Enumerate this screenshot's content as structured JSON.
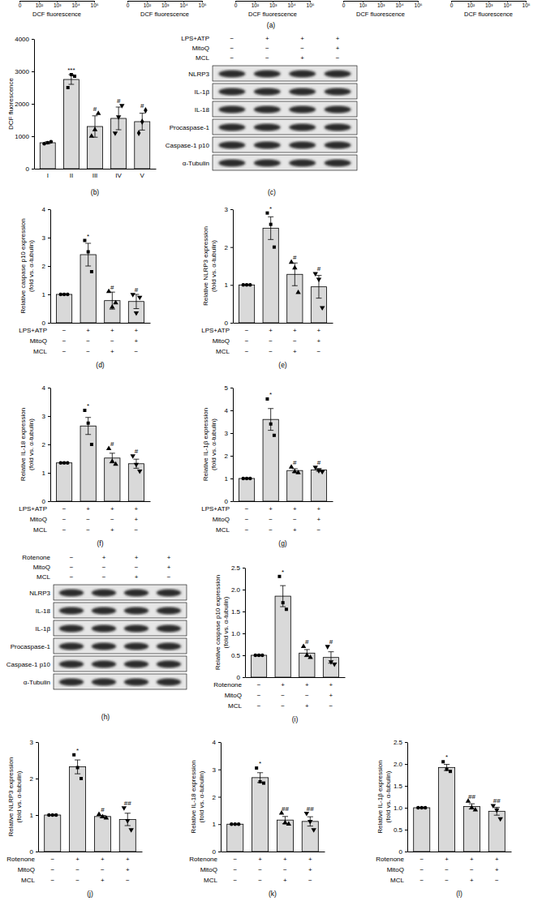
{
  "flow": {
    "panel_label": "(a)",
    "panels": [
      {
        "xlabel": "DCF fluorescence",
        "xlim": [
          0,
          100000
        ],
        "xticks": [
          {
            "value": 0,
            "label": "0"
          },
          {
            "value": 100,
            "label": "10²"
          },
          {
            "value": 1000,
            "label": "10³"
          },
          {
            "value": 10000,
            "label": "10⁴"
          },
          {
            "value": 100000,
            "label": "10⁵"
          }
        ]
      },
      {
        "xlabel": "DCF fluorescence",
        "xlim": [
          0,
          100000
        ],
        "xticks": [
          {
            "value": 0,
            "label": "0"
          },
          {
            "value": 100,
            "label": "10²"
          },
          {
            "value": 1000,
            "label": "10³"
          },
          {
            "value": 10000,
            "label": "10⁴"
          },
          {
            "value": 100000,
            "label": "10⁵"
          }
        ]
      },
      {
        "xlabel": "DCF fluorescence",
        "xlim": [
          0,
          100000
        ],
        "xticks": [
          {
            "value": 0,
            "label": "0"
          },
          {
            "value": 100,
            "label": "10²"
          },
          {
            "value": 1000,
            "label": "10³"
          },
          {
            "value": 10000,
            "label": "10⁴"
          },
          {
            "value": 100000,
            "label": "10⁵"
          }
        ]
      },
      {
        "xlabel": "DCF fluorescence",
        "xlim": [
          0,
          100000
        ],
        "xticks": [
          {
            "value": 0,
            "label": "0"
          },
          {
            "value": 100,
            "label": "10²"
          },
          {
            "value": 1000,
            "label": "10³"
          },
          {
            "value": 10000,
            "label": "10⁴"
          },
          {
            "value": 100000,
            "label": "10⁵"
          }
        ]
      },
      {
        "xlabel": "DCF fluorescence",
        "xlim": [
          0,
          100000
        ],
        "xticks": [
          {
            "value": 0,
            "label": "0"
          },
          {
            "value": 100,
            "label": "10²"
          },
          {
            "value": 1000,
            "label": "10³"
          },
          {
            "value": 10000,
            "label": "10⁴"
          },
          {
            "value": 100000,
            "label": "10⁵"
          }
        ]
      }
    ]
  },
  "blots": [
    {
      "panel_label": "(c)",
      "conditions": [
        {
          "label": "LPS+ATP",
          "marks": [
            "−",
            "+",
            "+",
            "+"
          ]
        },
        {
          "label": "MitoQ",
          "marks": [
            "−",
            "−",
            "−",
            "+"
          ]
        },
        {
          "label": "MCL",
          "marks": [
            "−",
            "−",
            "+",
            "−"
          ]
        }
      ],
      "bands": [
        "NLRP3",
        "IL-1β",
        "IL-18",
        "Procaspase-1",
        "Caspase-1 p10",
        "α-Tubulin"
      ]
    },
    {
      "panel_label": "(h)",
      "conditions": [
        {
          "label": "Rotenone",
          "marks": [
            "−",
            "+",
            "+",
            "+"
          ]
        },
        {
          "label": "MitoQ",
          "marks": [
            "−",
            "−",
            "−",
            "+"
          ]
        },
        {
          "label": "MCL",
          "marks": [
            "−",
            "−",
            "+",
            "−"
          ]
        }
      ],
      "bands": [
        "NLRP3",
        "IL-18",
        "IL-1β",
        "Procaspase-1",
        "Caspase-1 p10",
        "α-Tubulin"
      ]
    }
  ],
  "chart_data": [
    {
      "type": "bar",
      "panel_label": "(b)",
      "ylabel": [
        "DCF fluorescence"
      ],
      "categories": [
        "I",
        "II",
        "III",
        "IV",
        "V"
      ],
      "values": [
        800,
        2750,
        1300,
        1550,
        1450
      ],
      "errors": [
        30,
        150,
        330,
        350,
        260
      ],
      "points": [
        [
          770,
          800,
          830
        ],
        [
          2500,
          2900,
          2850
        ],
        [
          1000,
          1200,
          1700
        ],
        [
          1100,
          1600,
          1950
        ],
        [
          1100,
          1450,
          1800
        ]
      ],
      "annotations": [
        null,
        "***",
        "#",
        "#",
        "#"
      ],
      "color": "#d9d9d9",
      "ylim": [
        0,
        4000
      ],
      "yticks": [
        0,
        1000,
        2000,
        3000,
        4000
      ]
    },
    {
      "type": "bar",
      "panel_label": "(d)",
      "ylabel": [
        "Relative caspase p10 expression",
        "(fold vs. α-tubulin)"
      ],
      "categories": [
        null,
        null,
        null,
        null
      ],
      "conditions": [
        {
          "label": "LPS+ATP",
          "marks": [
            "−",
            "+",
            "+",
            "+"
          ]
        },
        {
          "label": "MitoQ",
          "marks": [
            "−",
            "−",
            "−",
            "+"
          ]
        },
        {
          "label": "MCL",
          "marks": [
            "−",
            "−",
            "+",
            "−"
          ]
        }
      ],
      "values": [
        1,
        2.4,
        0.78,
        0.75
      ],
      "errors": [
        0,
        0.4,
        0.3,
        0.25
      ],
      "points": [
        [
          1,
          1,
          1
        ],
        [
          2.9,
          2.5,
          1.8
        ],
        [
          1.1,
          0.55,
          0.7
        ],
        [
          1.0,
          0.35,
          0.9
        ]
      ],
      "annotations": [
        null,
        "*",
        "#",
        "#"
      ],
      "color": "#d9d9d9",
      "ylim": [
        0,
        4
      ],
      "yticks": [
        0,
        1,
        2,
        3,
        4
      ]
    },
    {
      "type": "bar",
      "panel_label": "(e)",
      "ylabel": [
        "Relative NLRP3 expression",
        "(fold vs. α-tubulin)"
      ],
      "categories": [
        null,
        null,
        null,
        null
      ],
      "conditions": [
        {
          "label": "LPS+ATP",
          "marks": [
            "−",
            "+",
            "+",
            "+"
          ]
        },
        {
          "label": "MitoQ",
          "marks": [
            "−",
            "−",
            "−",
            "+"
          ]
        },
        {
          "label": "MCL",
          "marks": [
            "−",
            "−",
            "+",
            "−"
          ]
        }
      ],
      "values": [
        1,
        2.5,
        1.28,
        0.95
      ],
      "errors": [
        0,
        0.3,
        0.3,
        0.3
      ],
      "points": [
        [
          1,
          1,
          1
        ],
        [
          2.9,
          2.6,
          2.0
        ],
        [
          1.6,
          1.45,
          0.8
        ],
        [
          1.3,
          1.15,
          0.4
        ]
      ],
      "annotations": [
        null,
        "*",
        "#",
        "#"
      ],
      "color": "#d9d9d9",
      "ylim": [
        0,
        3
      ],
      "yticks": [
        0,
        1,
        2,
        3
      ]
    },
    {
      "type": "bar",
      "panel_label": "(f)",
      "ylabel": [
        "Relative IL-18 expression",
        "(fold vs. α-tubulin)"
      ],
      "categories": [
        null,
        null,
        null,
        null
      ],
      "conditions": [
        {
          "label": "LPS+ATP",
          "marks": [
            "−",
            "+",
            "+",
            "+"
          ]
        },
        {
          "label": "MitoQ",
          "marks": [
            "−",
            "−",
            "−",
            "+"
          ]
        },
        {
          "label": "MCL",
          "marks": [
            "−",
            "−",
            "+",
            "−"
          ]
        }
      ],
      "values": [
        1.35,
        2.65,
        1.52,
        1.32
      ],
      "errors": [
        0.01,
        0.3,
        0.17,
        0.16
      ],
      "points": [
        [
          1.35,
          1.35,
          1.35
        ],
        [
          3.2,
          2.75,
          2.0
        ],
        [
          1.85,
          1.4,
          1.3
        ],
        [
          1.6,
          1.3,
          1.06
        ]
      ],
      "annotations": [
        null,
        "*",
        "#",
        "#"
      ],
      "color": "#d9d9d9",
      "ylim": [
        0,
        4
      ],
      "yticks": [
        0,
        1,
        2,
        3,
        4
      ]
    },
    {
      "type": "bar",
      "panel_label": "(g)",
      "ylabel": [
        "Relative IL-1β expression",
        "(fold vs. α-tubulin)"
      ],
      "categories": [
        null,
        null,
        null,
        null
      ],
      "conditions": [
        {
          "label": "LPS+ATP",
          "marks": [
            "−",
            "+",
            "+",
            "+"
          ]
        },
        {
          "label": "MitoQ",
          "marks": [
            "−",
            "−",
            "−",
            "+"
          ]
        },
        {
          "label": "MCL",
          "marks": [
            "−",
            "−",
            "+",
            "−"
          ]
        }
      ],
      "values": [
        1,
        3.6,
        1.35,
        1.38
      ],
      "errors": [
        0,
        0.48,
        0.08,
        0.06
      ],
      "points": [
        [
          1,
          1,
          1
        ],
        [
          4.5,
          3.4,
          2.9
        ],
        [
          1.5,
          1.3,
          1.25
        ],
        [
          1.5,
          1.35,
          1.3
        ]
      ],
      "annotations": [
        null,
        "*",
        "#",
        "#"
      ],
      "color": "#d9d9d9",
      "ylim": [
        0,
        5
      ],
      "yticks": [
        0,
        1,
        2,
        3,
        4,
        5
      ]
    },
    {
      "type": "bar",
      "panel_label": "(i)",
      "ylabel": [
        "Relative caspase p10 expression",
        "(fold vs. α-tubulin)"
      ],
      "categories": [
        null,
        null,
        null,
        null
      ],
      "conditions": [
        {
          "label": "Rotenone",
          "marks": [
            "−",
            "+",
            "+",
            "+"
          ]
        },
        {
          "label": "MitoQ",
          "marks": [
            "−",
            "−",
            "−",
            "+"
          ]
        },
        {
          "label": "MCL",
          "marks": [
            "−",
            "−",
            "+",
            "−"
          ]
        }
      ],
      "values": [
        0.5,
        1.85,
        0.55,
        0.45
      ],
      "errors": [
        0,
        0.24,
        0.08,
        0.13
      ],
      "points": [
        [
          0.5,
          0.5,
          0.5
        ],
        [
          2.3,
          1.7,
          1.55
        ],
        [
          0.7,
          0.5,
          0.45
        ],
        [
          0.7,
          0.35,
          0.3
        ]
      ],
      "annotations": [
        null,
        "*",
        "#",
        "#"
      ],
      "color": "#d9d9d9",
      "ylim": [
        0,
        2.5
      ],
      "yticks": [
        0,
        0.5,
        {
          "value": 1,
          "label": "1.0"
        },
        1.5,
        {
          "value": 2,
          "label": "2.0"
        },
        2.5
      ]
    },
    {
      "type": "bar",
      "panel_label": "(j)",
      "ylabel": [
        "Relative NLRP3 expression",
        "(fold vs. α-tubulin)"
      ],
      "categories": [
        null,
        null,
        null,
        null
      ],
      "conditions": [
        {
          "label": "Rotenone",
          "marks": [
            "−",
            "+",
            "+",
            "+"
          ]
        },
        {
          "label": "MitoQ",
          "marks": [
            "−",
            "−",
            "−",
            "+"
          ]
        },
        {
          "label": "MCL",
          "marks": [
            "−",
            "−",
            "+",
            "−"
          ]
        }
      ],
      "values": [
        1,
        2.32,
        0.96,
        0.88
      ],
      "errors": [
        0,
        0.19,
        0.03,
        0.17
      ],
      "points": [
        [
          1,
          1,
          1
        ],
        [
          2.65,
          2.3,
          2.0
        ],
        [
          1.02,
          0.95,
          0.92
        ],
        [
          1.2,
          0.85,
          0.6
        ]
      ],
      "annotations": [
        null,
        "*",
        "#",
        "##"
      ],
      "color": "#d9d9d9",
      "ylim": [
        0,
        3
      ],
      "yticks": [
        0,
        1,
        2,
        3
      ]
    },
    {
      "type": "bar",
      "panel_label": "(k)",
      "ylabel": [
        "Relative IL-18 expression",
        "(fold vs. α-tubulin)"
      ],
      "categories": [
        null,
        null,
        null,
        null
      ],
      "conditions": [
        {
          "label": "Rotenone",
          "marks": [
            "−",
            "+",
            "+",
            "+"
          ]
        },
        {
          "label": "MitoQ",
          "marks": [
            "−",
            "−",
            "−",
            "+"
          ]
        },
        {
          "label": "MCL",
          "marks": [
            "−",
            "−",
            "+",
            "−"
          ]
        }
      ],
      "values": [
        1,
        2.7,
        1.15,
        1.1
      ],
      "errors": [
        0,
        0.18,
        0.13,
        0.17
      ],
      "points": [
        [
          1,
          1,
          1
        ],
        [
          3.05,
          2.55,
          2.5
        ],
        [
          1.4,
          1.05,
          1.0
        ],
        [
          1.4,
          1.1,
          0.8
        ]
      ],
      "annotations": [
        null,
        "*",
        "##",
        "##"
      ],
      "color": "#d9d9d9",
      "ylim": [
        0,
        4
      ],
      "yticks": [
        0,
        1,
        2,
        3,
        4
      ]
    },
    {
      "type": "bar",
      "panel_label": "(l)",
      "ylabel": [
        "Relative IL-1β expression",
        "(fold vs. α-tubulin)"
      ],
      "categories": [
        null,
        null,
        null,
        null
      ],
      "conditions": [
        {
          "label": "Rotenone",
          "marks": [
            "−",
            "+",
            "+",
            "+"
          ]
        },
        {
          "label": "MitoQ",
          "marks": [
            "−",
            "−",
            "−",
            "+"
          ]
        },
        {
          "label": "MCL",
          "marks": [
            "−",
            "−",
            "+",
            "−"
          ]
        }
      ],
      "values": [
        1,
        1.92,
        1.03,
        0.92
      ],
      "errors": [
        0,
        0.07,
        0.06,
        0.09
      ],
      "points": [
        [
          1,
          1,
          1
        ],
        [
          2.05,
          1.88,
          1.83
        ],
        [
          1.15,
          1.0,
          0.95
        ],
        [
          1.05,
          0.95,
          0.75
        ]
      ],
      "annotations": [
        null,
        "*",
        "##",
        "##"
      ],
      "color": "#d9d9d9",
      "ylim": [
        0,
        2.5
      ],
      "yticks": [
        0,
        0.5,
        {
          "value": 1,
          "label": "1.0"
        },
        1.5,
        {
          "value": 2,
          "label": "2.0"
        },
        2.5
      ]
    }
  ]
}
